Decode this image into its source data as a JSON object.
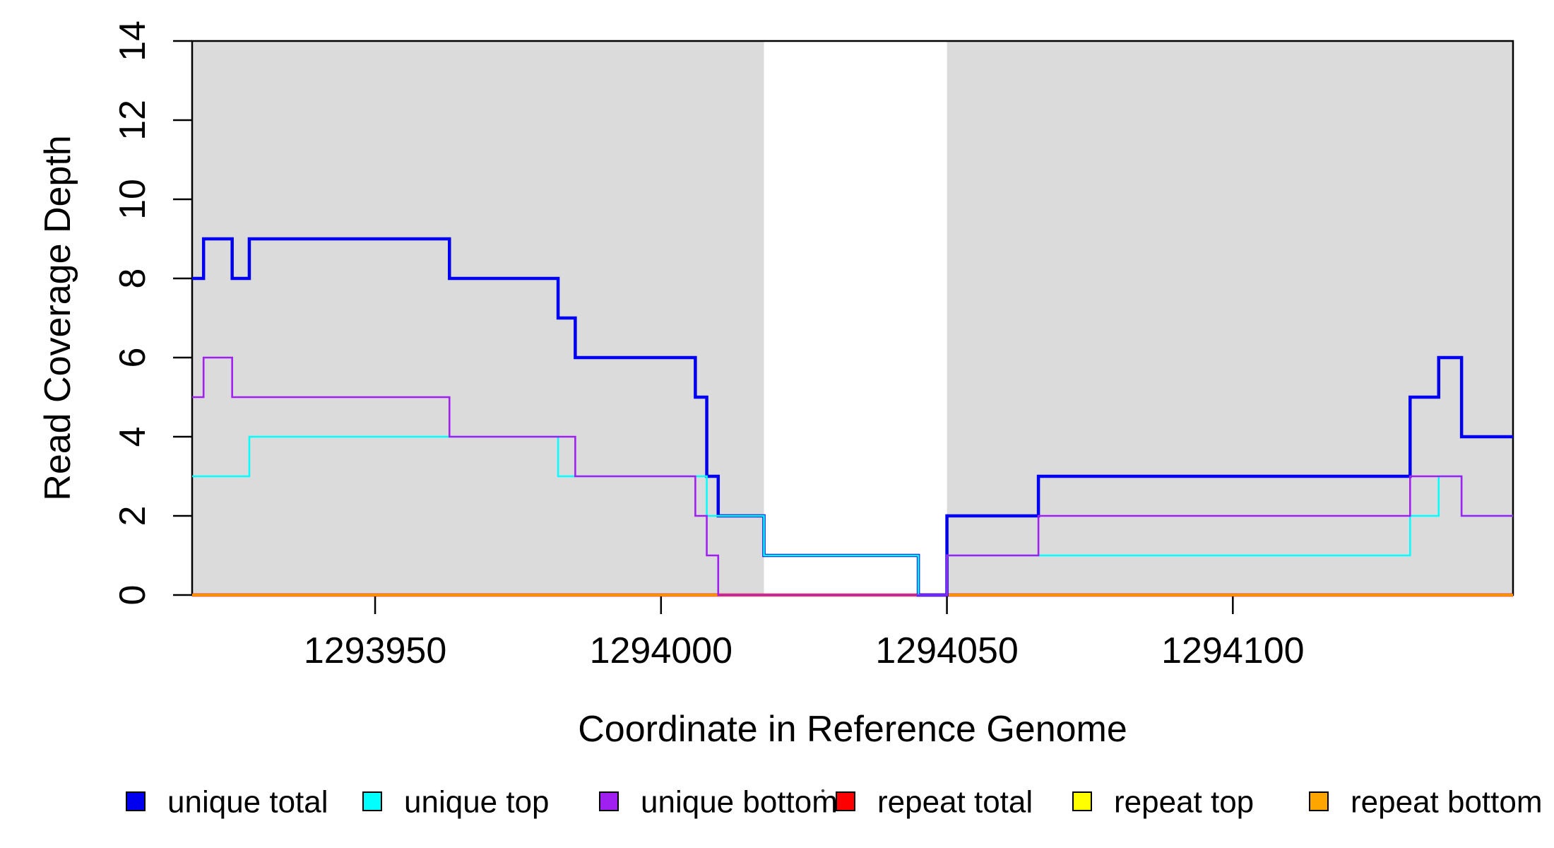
{
  "chart_data": {
    "type": "line",
    "subtype": "step-after-coverage",
    "title": "",
    "xlabel": "Coordinate in Reference Genome",
    "ylabel": "Read Coverage Depth",
    "xlim": [
      1293918,
      1294149
    ],
    "ylim": [
      0,
      14
    ],
    "x_ticks": [
      1293950,
      1294000,
      1294050,
      1294100
    ],
    "x_tick_labels": [
      "1293950",
      "1294000",
      "1294050",
      "1294100"
    ],
    "y_ticks": [
      0,
      2,
      4,
      6,
      8,
      10,
      12,
      14
    ],
    "y_tick_labels": [
      "0",
      "2",
      "4",
      "6",
      "8",
      "10",
      "12",
      "14"
    ],
    "grid": false,
    "background_color": "#ffffff",
    "shaded_regions": [
      {
        "name": "unique-region-left",
        "x0": 1293918,
        "x1": 1294018,
        "color": "#dbdbdb"
      },
      {
        "name": "unique-region-right",
        "x0": 1294050,
        "x1": 1294149,
        "color": "#dbdbdb"
      }
    ],
    "render_order": [
      "repeat total",
      "repeat top",
      "repeat bottom",
      "unique total",
      "unique top",
      "unique bottom"
    ],
    "series": [
      {
        "name": "unique total",
        "color": "#0000ee",
        "line_width": 4.5,
        "points": [
          [
            1293918,
            8
          ],
          [
            1293920,
            9
          ],
          [
            1293925,
            8
          ],
          [
            1293928,
            9
          ],
          [
            1293963,
            8
          ],
          [
            1293982,
            7
          ],
          [
            1293985,
            6
          ],
          [
            1294006,
            5
          ],
          [
            1294008,
            3
          ],
          [
            1294010,
            2
          ],
          [
            1294018,
            1
          ],
          [
            1294045,
            0
          ],
          [
            1294050,
            2
          ],
          [
            1294066,
            3
          ],
          [
            1294131,
            5
          ],
          [
            1294136,
            6
          ],
          [
            1294140,
            4
          ]
        ]
      },
      {
        "name": "unique top",
        "color": "#00ffff",
        "line_width": 2.5,
        "points": [
          [
            1293918,
            3
          ],
          [
            1293928,
            4
          ],
          [
            1293982,
            3
          ],
          [
            1294008,
            2
          ],
          [
            1294018,
            1
          ],
          [
            1294045,
            0
          ],
          [
            1294050,
            1
          ],
          [
            1294131,
            2
          ],
          [
            1294136,
            3
          ],
          [
            1294140,
            2
          ]
        ]
      },
      {
        "name": "unique bottom",
        "color": "#a020f0",
        "line_width": 2.6,
        "points": [
          [
            1293918,
            5
          ],
          [
            1293920,
            6
          ],
          [
            1293925,
            5
          ],
          [
            1293963,
            4
          ],
          [
            1293985,
            3
          ],
          [
            1294006,
            2
          ],
          [
            1294008,
            1
          ],
          [
            1294010,
            0
          ],
          [
            1294050,
            1
          ],
          [
            1294066,
            2
          ],
          [
            1294131,
            3
          ],
          [
            1294140,
            2
          ]
        ]
      },
      {
        "name": "repeat total",
        "color": "#ff0000",
        "line_width": 4.5,
        "points": [
          [
            1293918,
            0
          ]
        ]
      },
      {
        "name": "repeat top",
        "color": "#ffff00",
        "line_width": 2.5,
        "points": [
          [
            1293918,
            0
          ]
        ]
      },
      {
        "name": "repeat bottom",
        "color": "#ffa500",
        "line_width": 3.2,
        "points": [
          [
            1293918,
            0
          ]
        ]
      }
    ],
    "legend_position": "bottom",
    "legend": [
      {
        "label": "unique total",
        "color": "#0000ee"
      },
      {
        "label": "unique top",
        "color": "#00ffff"
      },
      {
        "label": "unique bottom",
        "color": "#a020f0"
      },
      {
        "label": "repeat total",
        "color": "#ff0000"
      },
      {
        "label": "repeat top",
        "color": "#ffff00"
      },
      {
        "label": "repeat bottom",
        "color": "#ffa500"
      }
    ]
  },
  "axes_text": {
    "x_title": "Coordinate in Reference Genome",
    "y_title": "Read Coverage Depth"
  }
}
